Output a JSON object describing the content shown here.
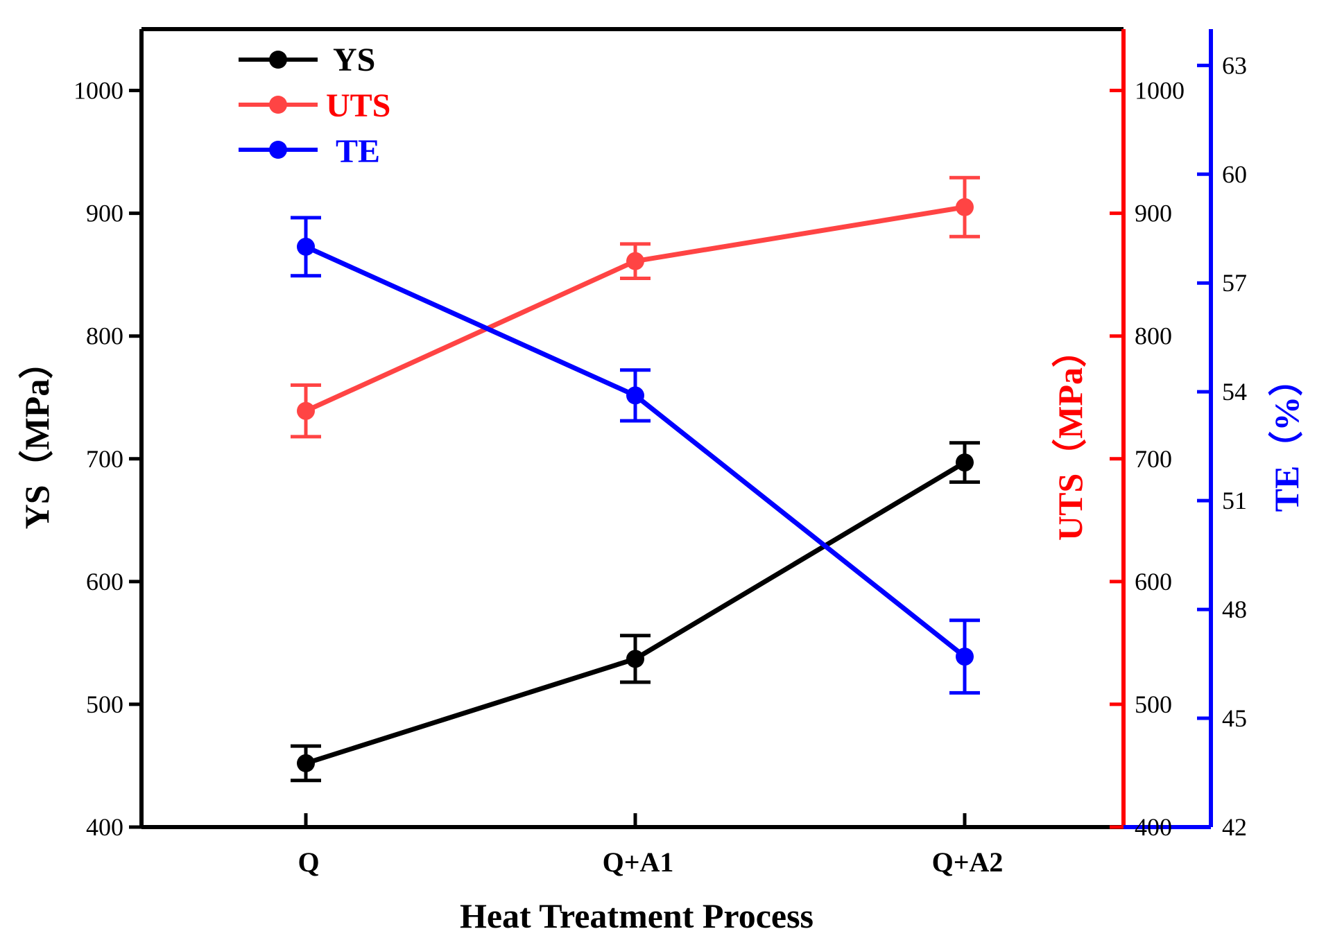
{
  "chart_data": {
    "type": "line",
    "xlabel": "Heat Treatment Process",
    "categories": [
      "Q",
      "Q+A1",
      "Q+A2"
    ],
    "axes": {
      "left": {
        "label": "YS（MPa）",
        "ylim": [
          400,
          1050
        ],
        "ticks": [
          400,
          500,
          600,
          700,
          800,
          900,
          1000
        ],
        "color": "#000000"
      },
      "right1": {
        "label": "UTS（MPa）",
        "ylim": [
          400,
          1050
        ],
        "ticks": [
          400,
          500,
          600,
          700,
          800,
          900,
          1000
        ],
        "color": "#ff0000"
      },
      "right2": {
        "label": "TE（%）",
        "ylim": [
          42,
          64
        ],
        "ticks": [
          42,
          45,
          48,
          51,
          54,
          57,
          60,
          63
        ],
        "color": "#0000ff"
      }
    },
    "series": [
      {
        "name": "YS",
        "axis": "left",
        "color": "#000000",
        "values": [
          452,
          537,
          697
        ],
        "errors": [
          14,
          19,
          16
        ]
      },
      {
        "name": "UTS",
        "axis": "right1",
        "color": "#ff4444",
        "values": [
          739,
          861,
          905
        ],
        "errors": [
          21,
          14,
          24
        ]
      },
      {
        "name": "TE",
        "axis": "right2",
        "color": "#0000ff",
        "values": [
          58.0,
          53.9,
          46.7
        ],
        "errors": [
          0.8,
          0.7,
          1.0
        ]
      }
    ],
    "legend": {
      "position": "top-left",
      "entries": [
        "YS",
        "UTS",
        "TE"
      ]
    }
  }
}
